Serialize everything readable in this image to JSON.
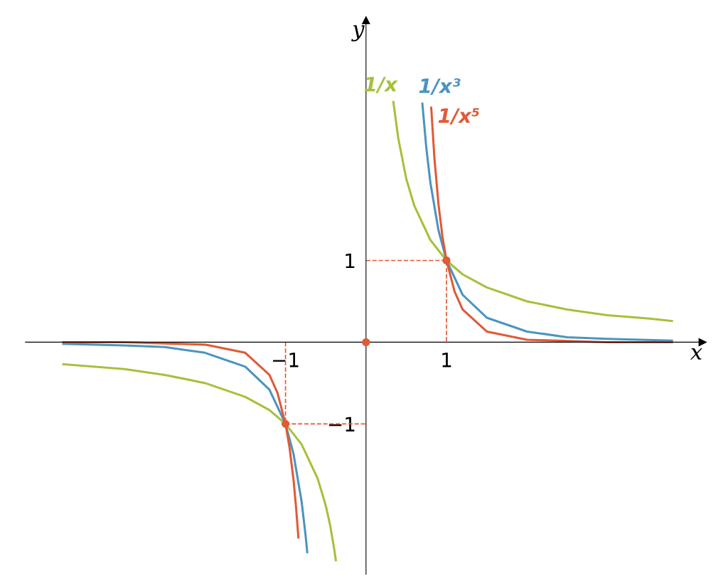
{
  "chart_data": {
    "type": "line",
    "xlabel": "x",
    "ylabel": "y",
    "xlim": [
      -4.23,
      4.18
    ],
    "ylim": [
      -2.84,
      3.94
    ],
    "xticks": [
      {
        "value": -1,
        "label": "−1"
      },
      {
        "value": 1,
        "label": "1"
      }
    ],
    "yticks": [
      {
        "value": -1,
        "label": "−1"
      },
      {
        "value": 1,
        "label": "1"
      }
    ],
    "grid": false,
    "legend": false,
    "series": [
      {
        "name": "1/x",
        "color": "#a5c13a",
        "x": [
          -3.76,
          -3,
          -2.5,
          -2,
          -1.5,
          -1.2,
          -1,
          -0.8,
          -0.6,
          -0.5,
          -0.45,
          -0.4,
          -0.375,
          0,
          0.34,
          0.4,
          0.5,
          0.6,
          0.8,
          1,
          1.2,
          1.5,
          2,
          2.5,
          3,
          3.5,
          3.8
        ],
        "values": [
          -0.27,
          -0.33,
          -0.4,
          -0.5,
          -0.67,
          -0.83,
          -1,
          -1.25,
          -1.67,
          -2,
          -2.22,
          -2.5,
          -2.67,
          null,
          2.94,
          2.5,
          2,
          1.67,
          1.25,
          1,
          0.83,
          0.67,
          0.5,
          0.4,
          0.33,
          0.29,
          0.26
        ]
      },
      {
        "name": "1/x³",
        "color": "#4a94c0",
        "x": [
          -3.76,
          -3,
          -2.5,
          -2,
          -1.5,
          -1.2,
          -1,
          -0.9,
          -0.8,
          -0.75,
          -0.73,
          0,
          0.7,
          0.75,
          0.8,
          0.9,
          1,
          1.2,
          1.5,
          2,
          2.5,
          3,
          3.8
        ],
        "values": [
          -0.02,
          -0.04,
          -0.06,
          -0.13,
          -0.3,
          -0.58,
          -1,
          -1.37,
          -1.95,
          -2.37,
          -2.57,
          null,
          2.92,
          2.37,
          1.95,
          1.37,
          1,
          0.58,
          0.3,
          0.13,
          0.06,
          0.04,
          0.02
        ]
      },
      {
        "name": "1/x⁵",
        "color": "#e05a36",
        "x": [
          -3.76,
          -3,
          -2,
          -1.5,
          -1.2,
          -1.1,
          -1,
          -0.95,
          -0.9,
          -0.87,
          -0.84,
          0,
          0.81,
          0.85,
          0.9,
          0.95,
          1,
          1.1,
          1.2,
          1.5,
          2,
          3,
          3.8
        ],
        "values": [
          0,
          0,
          -0.03,
          -0.13,
          -0.4,
          -0.62,
          -1,
          -1.29,
          -1.69,
          -2.01,
          -2.39,
          null,
          2.87,
          2.25,
          1.69,
          1.29,
          1,
          0.62,
          0.4,
          0.13,
          0.03,
          0,
          0
        ]
      },
      {
        "color": "#e05a36",
        "line_style": "dashed",
        "x": [
          0,
          1,
          1
        ],
        "values": [
          1,
          1,
          0
        ]
      },
      {
        "color": "#e05a36",
        "line_style": "dashed",
        "x": [
          -1,
          -1,
          0
        ],
        "values": [
          0,
          -1,
          -1
        ]
      },
      {
        "type": "scatter",
        "color": "#e05a36",
        "marker": "circle",
        "x": [
          -1,
          0,
          1
        ],
        "values": [
          -1,
          0,
          1
        ]
      }
    ]
  }
}
